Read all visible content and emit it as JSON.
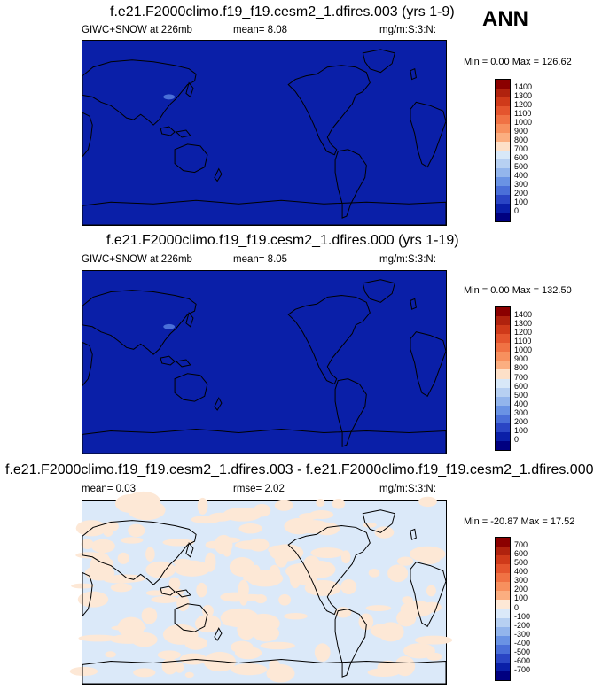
{
  "season": "ANN",
  "panels": [
    {
      "title": "f.e21.F2000climo.f19_f19.cesm2_1.dfires.003 (yrs 1-9)",
      "left_label": "GIWC+SNOW at 226mb",
      "mid_label": "mean=  8.08",
      "units": "mg/m:S:3:N:",
      "minmax": "Min =  0.00 Max = 126.62",
      "map_color": "#0a1fa8",
      "levels": [
        "1400",
        "1300",
        "1200",
        "1100",
        "1000",
        "900",
        "800",
        "700",
        "600",
        "500",
        "400",
        "300",
        "200",
        "100",
        "0"
      ],
      "colors": [
        "#8b0000",
        "#b0220e",
        "#cf3a1a",
        "#e4552e",
        "#f07244",
        "#f7905e",
        "#fbae80",
        "#fde0c8",
        "#d8e8f8",
        "#b7d0f2",
        "#93b5ec",
        "#6a93e4",
        "#4a6fd8",
        "#2a45c4",
        "#0a1fa8",
        "#000080"
      ]
    },
    {
      "title": "f.e21.F2000climo.f19_f19.cesm2_1.dfires.000 (yrs 1-19)",
      "left_label": "GIWC+SNOW at 226mb",
      "mid_label": "mean=  8.05",
      "units": "mg/m:S:3:N:",
      "minmax": "Min =  0.00 Max = 132.50",
      "map_color": "#0a1fa8",
      "levels": [
        "1400",
        "1300",
        "1200",
        "1100",
        "1000",
        "900",
        "800",
        "700",
        "600",
        "500",
        "400",
        "300",
        "200",
        "100",
        "0"
      ],
      "colors": [
        "#8b0000",
        "#b0220e",
        "#cf3a1a",
        "#e4552e",
        "#f07244",
        "#f7905e",
        "#fbae80",
        "#fde0c8",
        "#d8e8f8",
        "#b7d0f2",
        "#93b5ec",
        "#6a93e4",
        "#4a6fd8",
        "#2a45c4",
        "#0a1fa8",
        "#000080"
      ]
    },
    {
      "title": "f.e21.F2000climo.f19_f19.cesm2_1.dfires.003 - f.e21.F2000climo.f19_f19.cesm2_1.dfires.000",
      "left_label": "mean=  0.03",
      "mid_label": "rmse=  2.02",
      "units": "mg/m:S:3:N:",
      "minmax": "Min = -20.87 Max =  17.52",
      "map_color": "#dbe9f9",
      "levels": [
        "700",
        "600",
        "500",
        "400",
        "300",
        "200",
        "100",
        "0",
        "-100",
        "-200",
        "-300",
        "-400",
        "-500",
        "-600",
        "-700"
      ],
      "colors": [
        "#8b0000",
        "#b0220e",
        "#cf3a1a",
        "#e4552e",
        "#f07244",
        "#f7905e",
        "#fbae80",
        "#fde8d6",
        "#dbe9f9",
        "#b7d0f2",
        "#93b5ec",
        "#6a93e4",
        "#4a6fd8",
        "#2a45c4",
        "#0a1fa8",
        "#000080"
      ]
    }
  ]
}
